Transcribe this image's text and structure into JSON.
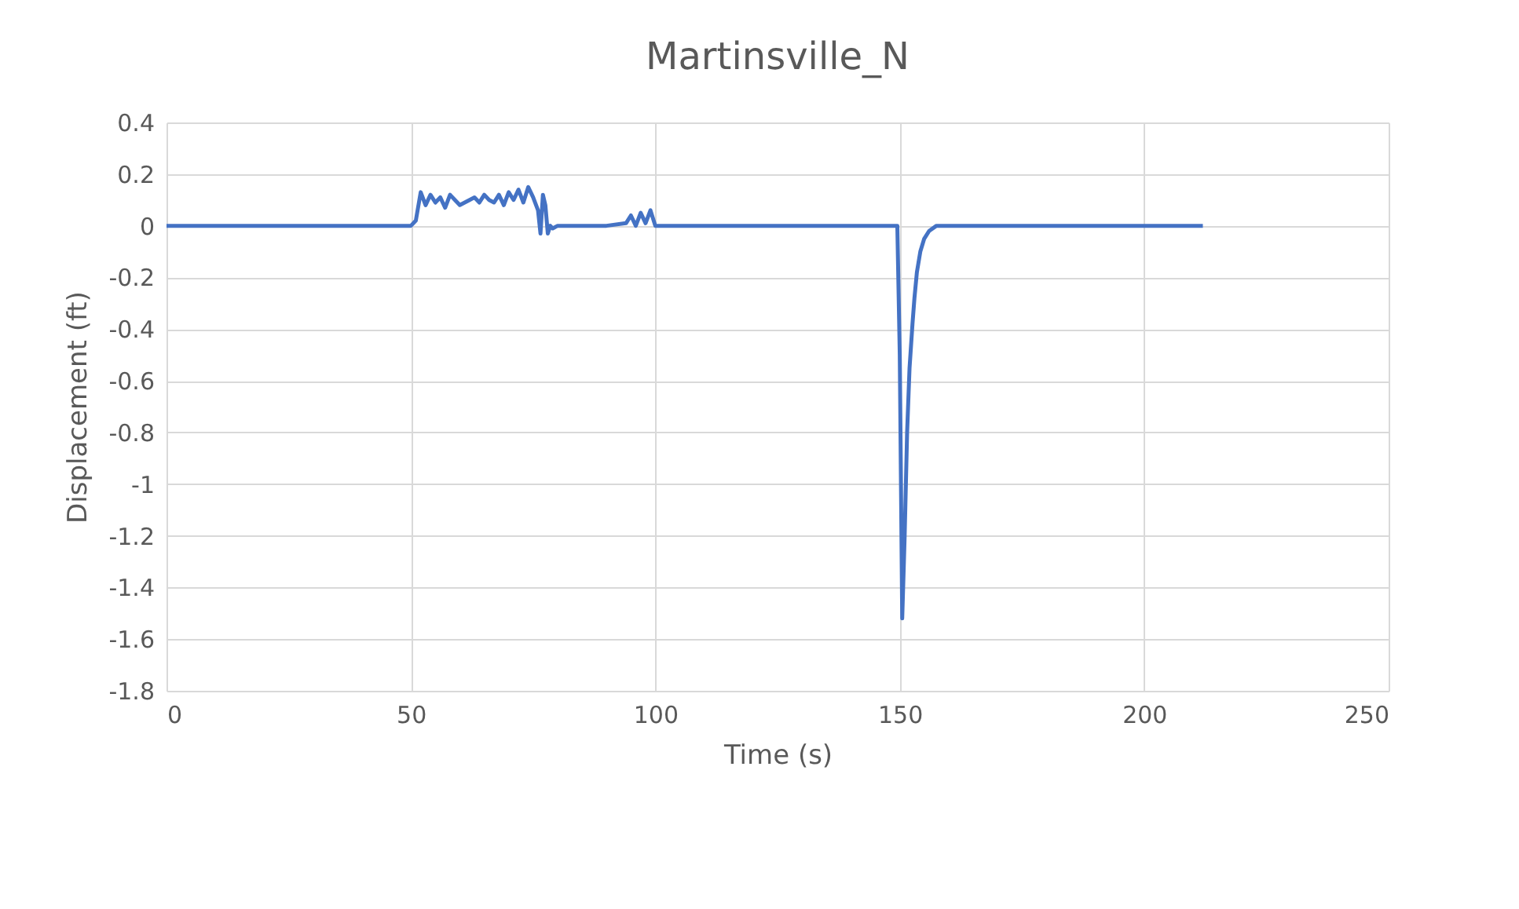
{
  "chart_data": {
    "type": "line",
    "title": "Martinsville_N",
    "xlabel": "Time (s)",
    "ylabel": "Displacement (ft)",
    "xlim": [
      0,
      250
    ],
    "xticks": [
      0,
      50,
      100,
      150,
      200,
      250
    ],
    "ylim": [
      -1.8,
      0.4
    ],
    "yticks": [
      -1.8,
      -1.6,
      -1.4,
      -1.2,
      -1,
      -0.8,
      -0.6,
      -0.4,
      -0.2,
      0,
      0.2,
      0.4
    ],
    "grid": true,
    "marker": "none",
    "line_style": "solid",
    "series": [
      {
        "color": "#4472c4",
        "x": [
          0,
          10,
          20,
          30,
          40,
          50,
          51,
          52,
          53,
          54,
          55,
          56,
          57,
          58,
          59,
          60,
          61,
          62,
          63,
          64,
          65,
          66,
          67,
          68,
          69,
          70,
          71,
          72,
          73,
          74,
          75,
          76,
          76.5,
          77,
          77.5,
          78,
          78.5,
          79,
          80,
          85,
          90,
          94,
          95,
          96,
          97,
          98,
          99,
          100,
          110,
          120,
          130,
          140,
          149.5,
          150,
          150.5,
          151,
          151.5,
          152,
          152.6,
          153,
          153.5,
          154.2,
          155,
          156,
          157.5,
          160,
          170,
          180,
          190,
          200,
          205,
          210,
          212
        ],
        "values": [
          0,
          0,
          0,
          0,
          0,
          0,
          0.02,
          0.13,
          0.08,
          0.12,
          0.09,
          0.11,
          0.07,
          0.12,
          0.1,
          0.08,
          0.09,
          0.1,
          0.11,
          0.09,
          0.12,
          0.1,
          0.09,
          0.12,
          0.08,
          0.13,
          0.1,
          0.14,
          0.09,
          0.15,
          0.11,
          0.06,
          -0.03,
          0.12,
          0.08,
          -0.03,
          0.0,
          -0.01,
          0,
          0,
          0,
          0.01,
          0.04,
          0.0,
          0.05,
          0.01,
          0.06,
          0,
          0,
          0,
          0,
          0,
          0,
          -0.5,
          -1.52,
          -1.2,
          -0.8,
          -0.55,
          -0.38,
          -0.28,
          -0.18,
          -0.1,
          -0.05,
          -0.02,
          0,
          0,
          0,
          0,
          0,
          0,
          0,
          0,
          0
        ]
      }
    ]
  }
}
